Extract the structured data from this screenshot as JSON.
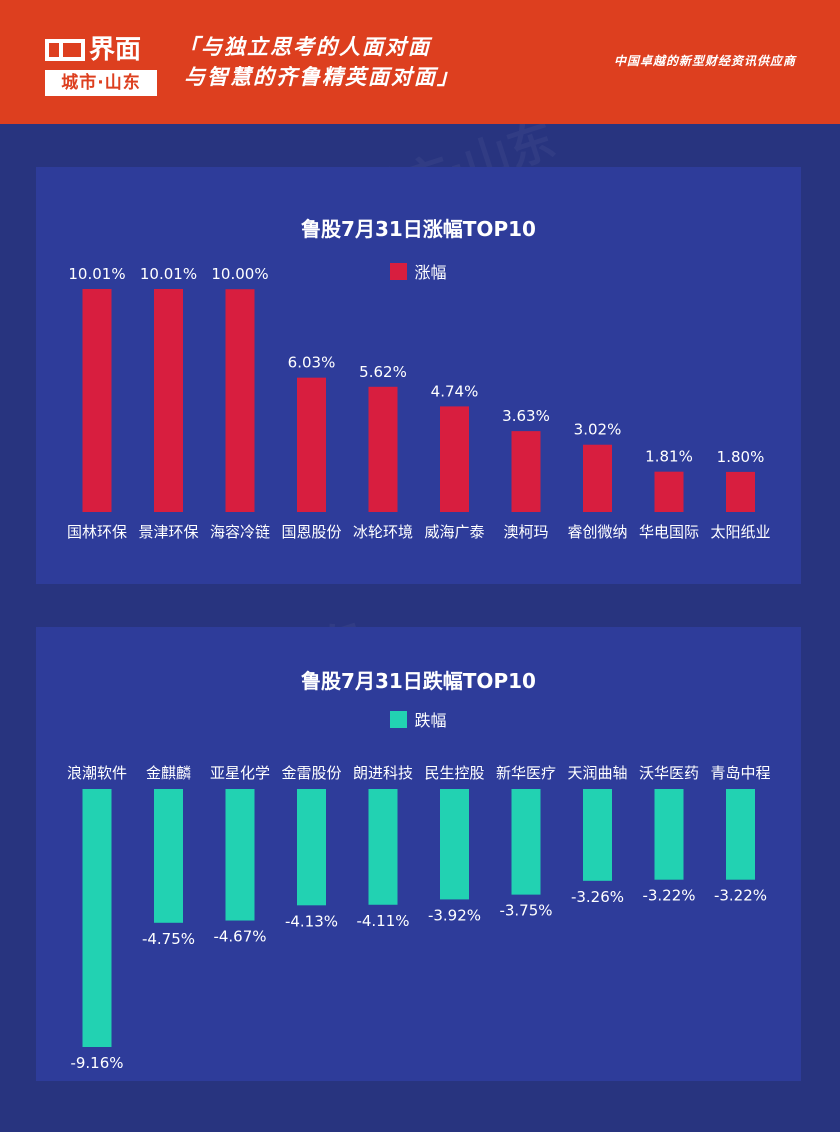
{
  "header": {
    "logo_main": "界面",
    "logo_sub": "城市·山东",
    "slogan_line1": "「与独立思考的人面对面",
    "slogan_line2": "与智慧的齐鲁精英面对面」",
    "tagline": "中国卓越的新型财经资讯供应商",
    "background_color": "#dd3f1f"
  },
  "chart_data": [
    {
      "type": "bar",
      "title": "鲁股7月31日涨幅TOP10",
      "legend": "涨幅",
      "color": "#d81e3f",
      "categories": [
        "国林环保",
        "景津环保",
        "海容冷链",
        "国恩股份",
        "冰轮环境",
        "威海广泰",
        "澳柯玛",
        "睿创微纳",
        "华电国际",
        "太阳纸业"
      ],
      "values": [
        10.01,
        10.01,
        10.0,
        6.03,
        5.62,
        4.74,
        3.63,
        3.02,
        1.81,
        1.8
      ],
      "labels": [
        "10.01%",
        "10.01%",
        "10.00%",
        "6.03%",
        "5.62%",
        "4.74%",
        "3.63%",
        "3.02%",
        "1.81%",
        "1.80%"
      ],
      "ylim": [
        0,
        10.01
      ],
      "grid": false,
      "legend_position": "top"
    },
    {
      "type": "bar",
      "title": "鲁股7月31日跌幅TOP10",
      "legend": "跌幅",
      "color": "#22d2b2",
      "categories": [
        "浪潮软件",
        "金麒麟",
        "亚星化学",
        "金雷股份",
        "朗进科技",
        "民生控股",
        "新华医疗",
        "天润曲轴",
        "沃华医药",
        "青岛中程"
      ],
      "values": [
        -9.16,
        -4.75,
        -4.67,
        -4.13,
        -4.11,
        -3.92,
        -3.75,
        -3.26,
        -3.22,
        -3.22
      ],
      "labels": [
        "-9.16%",
        "-4.75%",
        "-4.67%",
        "-4.13%",
        "-4.11%",
        "-3.92%",
        "-3.75%",
        "-3.26%",
        "-3.22%",
        "-3.22%"
      ],
      "ylim": [
        -9.16,
        0
      ],
      "grid": false,
      "legend_position": "top"
    }
  ]
}
